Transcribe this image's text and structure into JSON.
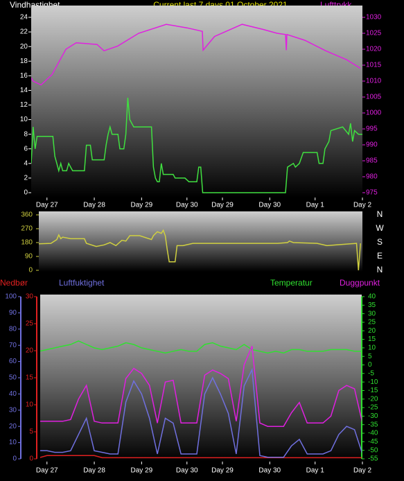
{
  "chart_data": [
    {
      "type": "line",
      "title": "Current last 7 days 01 October 2021",
      "ylabel": "Vindhastighet",
      "y2label": "Lufttrykk",
      "xlim": [
        0,
        168
      ],
      "xticks": [
        {
          "value": 8,
          "label": "Day 27"
        },
        {
          "value": 32,
          "label": "Day 28"
        },
        {
          "value": 56,
          "label": "Day 29"
        },
        {
          "value": 79,
          "label": "Day 30"
        },
        {
          "value": 97,
          "label": "Day 29"
        },
        {
          "value": 121,
          "label": "Day 30"
        },
        {
          "value": 144,
          "label": "Day 1"
        },
        {
          "value": 168,
          "label": "Day 2"
        }
      ],
      "ylim": [
        0,
        24
      ],
      "yticks": [
        0,
        2,
        4,
        6,
        8,
        10,
        12,
        14,
        16,
        18,
        20,
        22,
        24
      ],
      "y2lim": [
        975,
        1030
      ],
      "y2ticks": [
        975,
        980,
        985,
        990,
        995,
        1000,
        1005,
        1010,
        1015,
        1020,
        1025,
        1030
      ],
      "series": [
        {
          "color": "#40e040",
          "axis": "y",
          "x": [
            0,
            1,
            2,
            3,
            8,
            11,
            12,
            13,
            14,
            15,
            16,
            18,
            19,
            20,
            21,
            27,
            28,
            30,
            31,
            37,
            38,
            39,
            40,
            41,
            44,
            45,
            47,
            48,
            49,
            50,
            51,
            52,
            61,
            62,
            63,
            64,
            65,
            66,
            67,
            72,
            73,
            78,
            80,
            84,
            85,
            86,
            87,
            129,
            130,
            133,
            134,
            136,
            138,
            145,
            146,
            148,
            149,
            151,
            152,
            158,
            161,
            162,
            163,
            164,
            166,
            168
          ],
          "values": [
            4,
            9,
            6,
            7.7,
            7.7,
            7.7,
            5,
            4,
            3,
            4,
            3,
            3,
            4,
            3.5,
            3,
            3,
            6.5,
            6.5,
            4.5,
            4.5,
            6.5,
            8,
            9,
            8,
            8,
            6,
            6,
            8,
            13,
            10,
            9.5,
            9,
            9,
            3.5,
            2,
            1.5,
            1.5,
            4,
            2.5,
            2.5,
            2,
            2,
            1.5,
            1.5,
            3.5,
            3.5,
            0,
            0,
            3.5,
            4,
            3.5,
            4,
            5.5,
            5.5,
            4,
            4,
            6,
            7,
            8.5,
            9,
            8,
            9.5,
            7,
            8.5,
            8,
            8
          ]
        },
        {
          "color": "#e020e0",
          "axis": "y2",
          "x": [
            0,
            1,
            5,
            10.5,
            17.6,
            22.8,
            33.4,
            36.9,
            43.9,
            54.5,
            68.5,
            79,
            86.8,
            87.2,
            93,
            107,
            117.7,
            124.7,
            129,
            129.4,
            129.7,
            138.8,
            149.4,
            160,
            167
          ],
          "values": [
            1011,
            1010,
            1008.8,
            1012,
            1020,
            1022,
            1021.5,
            1019.5,
            1021,
            1025,
            1027.8,
            1026.7,
            1025.6,
            1019.7,
            1024,
            1027.8,
            1026.2,
            1025,
            1024.6,
            1019.7,
            1024.6,
            1022.8,
            1019.5,
            1016.7,
            1014
          ]
        }
      ]
    },
    {
      "type": "line",
      "xlim": [
        0,
        168
      ],
      "ylim": [
        0,
        360
      ],
      "yticks": [
        0,
        90,
        180,
        270,
        360
      ],
      "compass": [
        "N",
        "E",
        "S",
        "W",
        "N"
      ],
      "series": [
        {
          "color": "#d0d040",
          "axis": "y",
          "x": [
            0,
            10,
            13,
            14,
            15,
            16,
            20,
            27,
            28,
            33,
            37,
            40,
            43,
            46,
            48,
            50,
            55,
            61,
            62,
            64,
            66,
            67,
            68,
            69,
            70,
            73,
            74,
            77,
            82,
            83,
            125,
            130,
            131,
            133,
            145,
            150,
            155,
            165,
            166,
            167
          ],
          "values": [
            170,
            175,
            200,
            230,
            205,
            215,
            205,
            205,
            175,
            155,
            165,
            180,
            160,
            195,
            190,
            225,
            225,
            200,
            225,
            250,
            240,
            260,
            225,
            135,
            55,
            55,
            160,
            160,
            175,
            175,
            175,
            180,
            190,
            180,
            175,
            160,
            165,
            175,
            0,
            175
          ]
        }
      ]
    },
    {
      "type": "line",
      "xlim": [
        0,
        168
      ],
      "xticks": [
        {
          "value": 8,
          "label": "Day 27"
        },
        {
          "value": 32,
          "label": "Day 28"
        },
        {
          "value": 56,
          "label": "Day 29"
        },
        {
          "value": 79,
          "label": "Day 30"
        },
        {
          "value": 97,
          "label": "Day 29"
        },
        {
          "value": 121,
          "label": "Day 30"
        },
        {
          "value": 144,
          "label": "Day 1"
        },
        {
          "value": 168,
          "label": "Day 2"
        }
      ],
      "ylim": [
        0,
        100
      ],
      "yticks": [
        0,
        10,
        20,
        30,
        40,
        50,
        60,
        70,
        80,
        90,
        100
      ],
      "y3lim": [
        0,
        30
      ],
      "y3ticks": [
        0,
        5,
        10,
        15,
        20,
        25,
        30
      ],
      "y2lim": [
        -55,
        40
      ],
      "y2ticks": [
        -55,
        -50,
        -45,
        -40,
        -35,
        -30,
        -25,
        -20,
        -15,
        -10,
        -5,
        0,
        5,
        10,
        15,
        20,
        25,
        30,
        35,
        40
      ],
      "x": [
        0,
        4,
        8,
        12,
        16,
        20,
        24,
        28,
        32,
        36,
        40,
        44,
        48,
        52,
        56,
        60,
        64,
        68,
        72,
        76,
        80,
        84,
        88,
        92,
        96,
        100,
        104,
        108,
        112,
        116,
        120,
        124,
        128,
        132,
        136,
        140,
        144,
        148,
        152,
        156,
        160,
        164,
        168
      ],
      "series": [
        {
          "name": "Nedbør",
          "color": "#e02020",
          "axis": "y3",
          "values": [
            0.2,
            0.2,
            0.6,
            0.6,
            0.6,
            0.6,
            0.6,
            0.6,
            0.6,
            0.2,
            0.2,
            0.2,
            0.2,
            0.2,
            0.2,
            0.2,
            0.2,
            0.2,
            0.2,
            0.2,
            0.2,
            0.2,
            0.2,
            0.2,
            0.2,
            0.2,
            0.2,
            0.2,
            0.2,
            0.2,
            0.2,
            0.2,
            0.2,
            0.2,
            0.2,
            0.2,
            0.2,
            0.2,
            0.2,
            0.2,
            0.2,
            0.2,
            0.2
          ]
        },
        {
          "name": "Luftfuktighet",
          "color": "#7070e0",
          "axis": "y",
          "values": [
            5,
            5,
            5,
            4,
            4,
            5,
            15,
            25,
            5,
            4,
            3,
            3,
            35,
            48,
            40,
            25,
            3,
            25,
            22,
            3,
            3,
            3,
            40,
            50,
            40,
            28,
            3,
            45,
            55,
            2,
            1,
            1,
            1,
            8,
            12,
            3,
            3,
            3,
            5,
            15,
            20,
            18,
            3
          ]
        },
        {
          "name": "Temperatur",
          "color": "#30e030",
          "axis": "y2",
          "values": [
            8,
            8,
            9,
            10,
            11,
            12,
            14,
            12,
            10,
            9,
            10,
            11,
            13,
            12,
            10,
            9,
            8,
            7,
            8,
            9,
            8,
            8,
            12,
            13,
            11,
            10,
            9,
            12,
            9,
            8,
            7,
            8,
            7,
            9,
            9,
            8,
            8,
            8,
            9,
            9,
            9,
            8,
            8
          ]
        },
        {
          "name": "Duggpunkt",
          "color": "#e020e0",
          "axis": "y2",
          "values": [
            -32,
            -33,
            -33,
            -33,
            -33,
            -32,
            -20,
            -12,
            -33,
            -34,
            -34,
            -34,
            -8,
            -2,
            -5,
            -12,
            -34,
            -10,
            -9,
            -34,
            -34,
            -34,
            -6,
            -3,
            -5,
            -8,
            -33,
            0,
            11,
            -34,
            -36,
            -36,
            -36,
            -28,
            -22,
            -34,
            -34,
            -34,
            -30,
            -15,
            -12,
            -14,
            -34
          ]
        }
      ]
    }
  ]
}
